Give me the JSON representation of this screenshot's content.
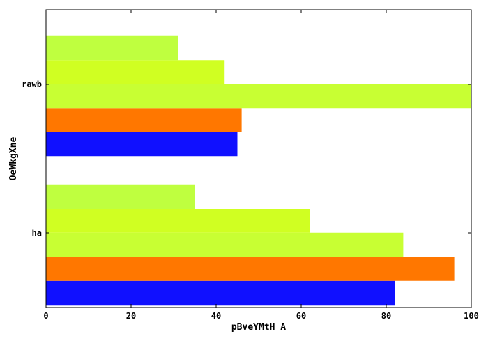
{
  "chart_data": {
    "type": "bar",
    "orientation": "horizontal",
    "title": "",
    "xlabel": "pBveYMtH A",
    "ylabel": "OeWkgXne",
    "xlim": [
      0,
      100
    ],
    "x_ticks": [
      0,
      20,
      40,
      60,
      80,
      100
    ],
    "categories": [
      "ha",
      "rawb"
    ],
    "series": [
      {
        "color": "#1010ff",
        "values": [
          82,
          45
        ]
      },
      {
        "color": "#ff7700",
        "values": [
          96,
          46
        ]
      },
      {
        "color": "#c8ff33",
        "values": [
          84,
          100
        ]
      },
      {
        "color": "#d0ff22",
        "values": [
          62,
          42
        ]
      },
      {
        "color": "#bfff3f",
        "values": [
          35,
          31
        ]
      }
    ],
    "grid": false,
    "legend": "none"
  }
}
